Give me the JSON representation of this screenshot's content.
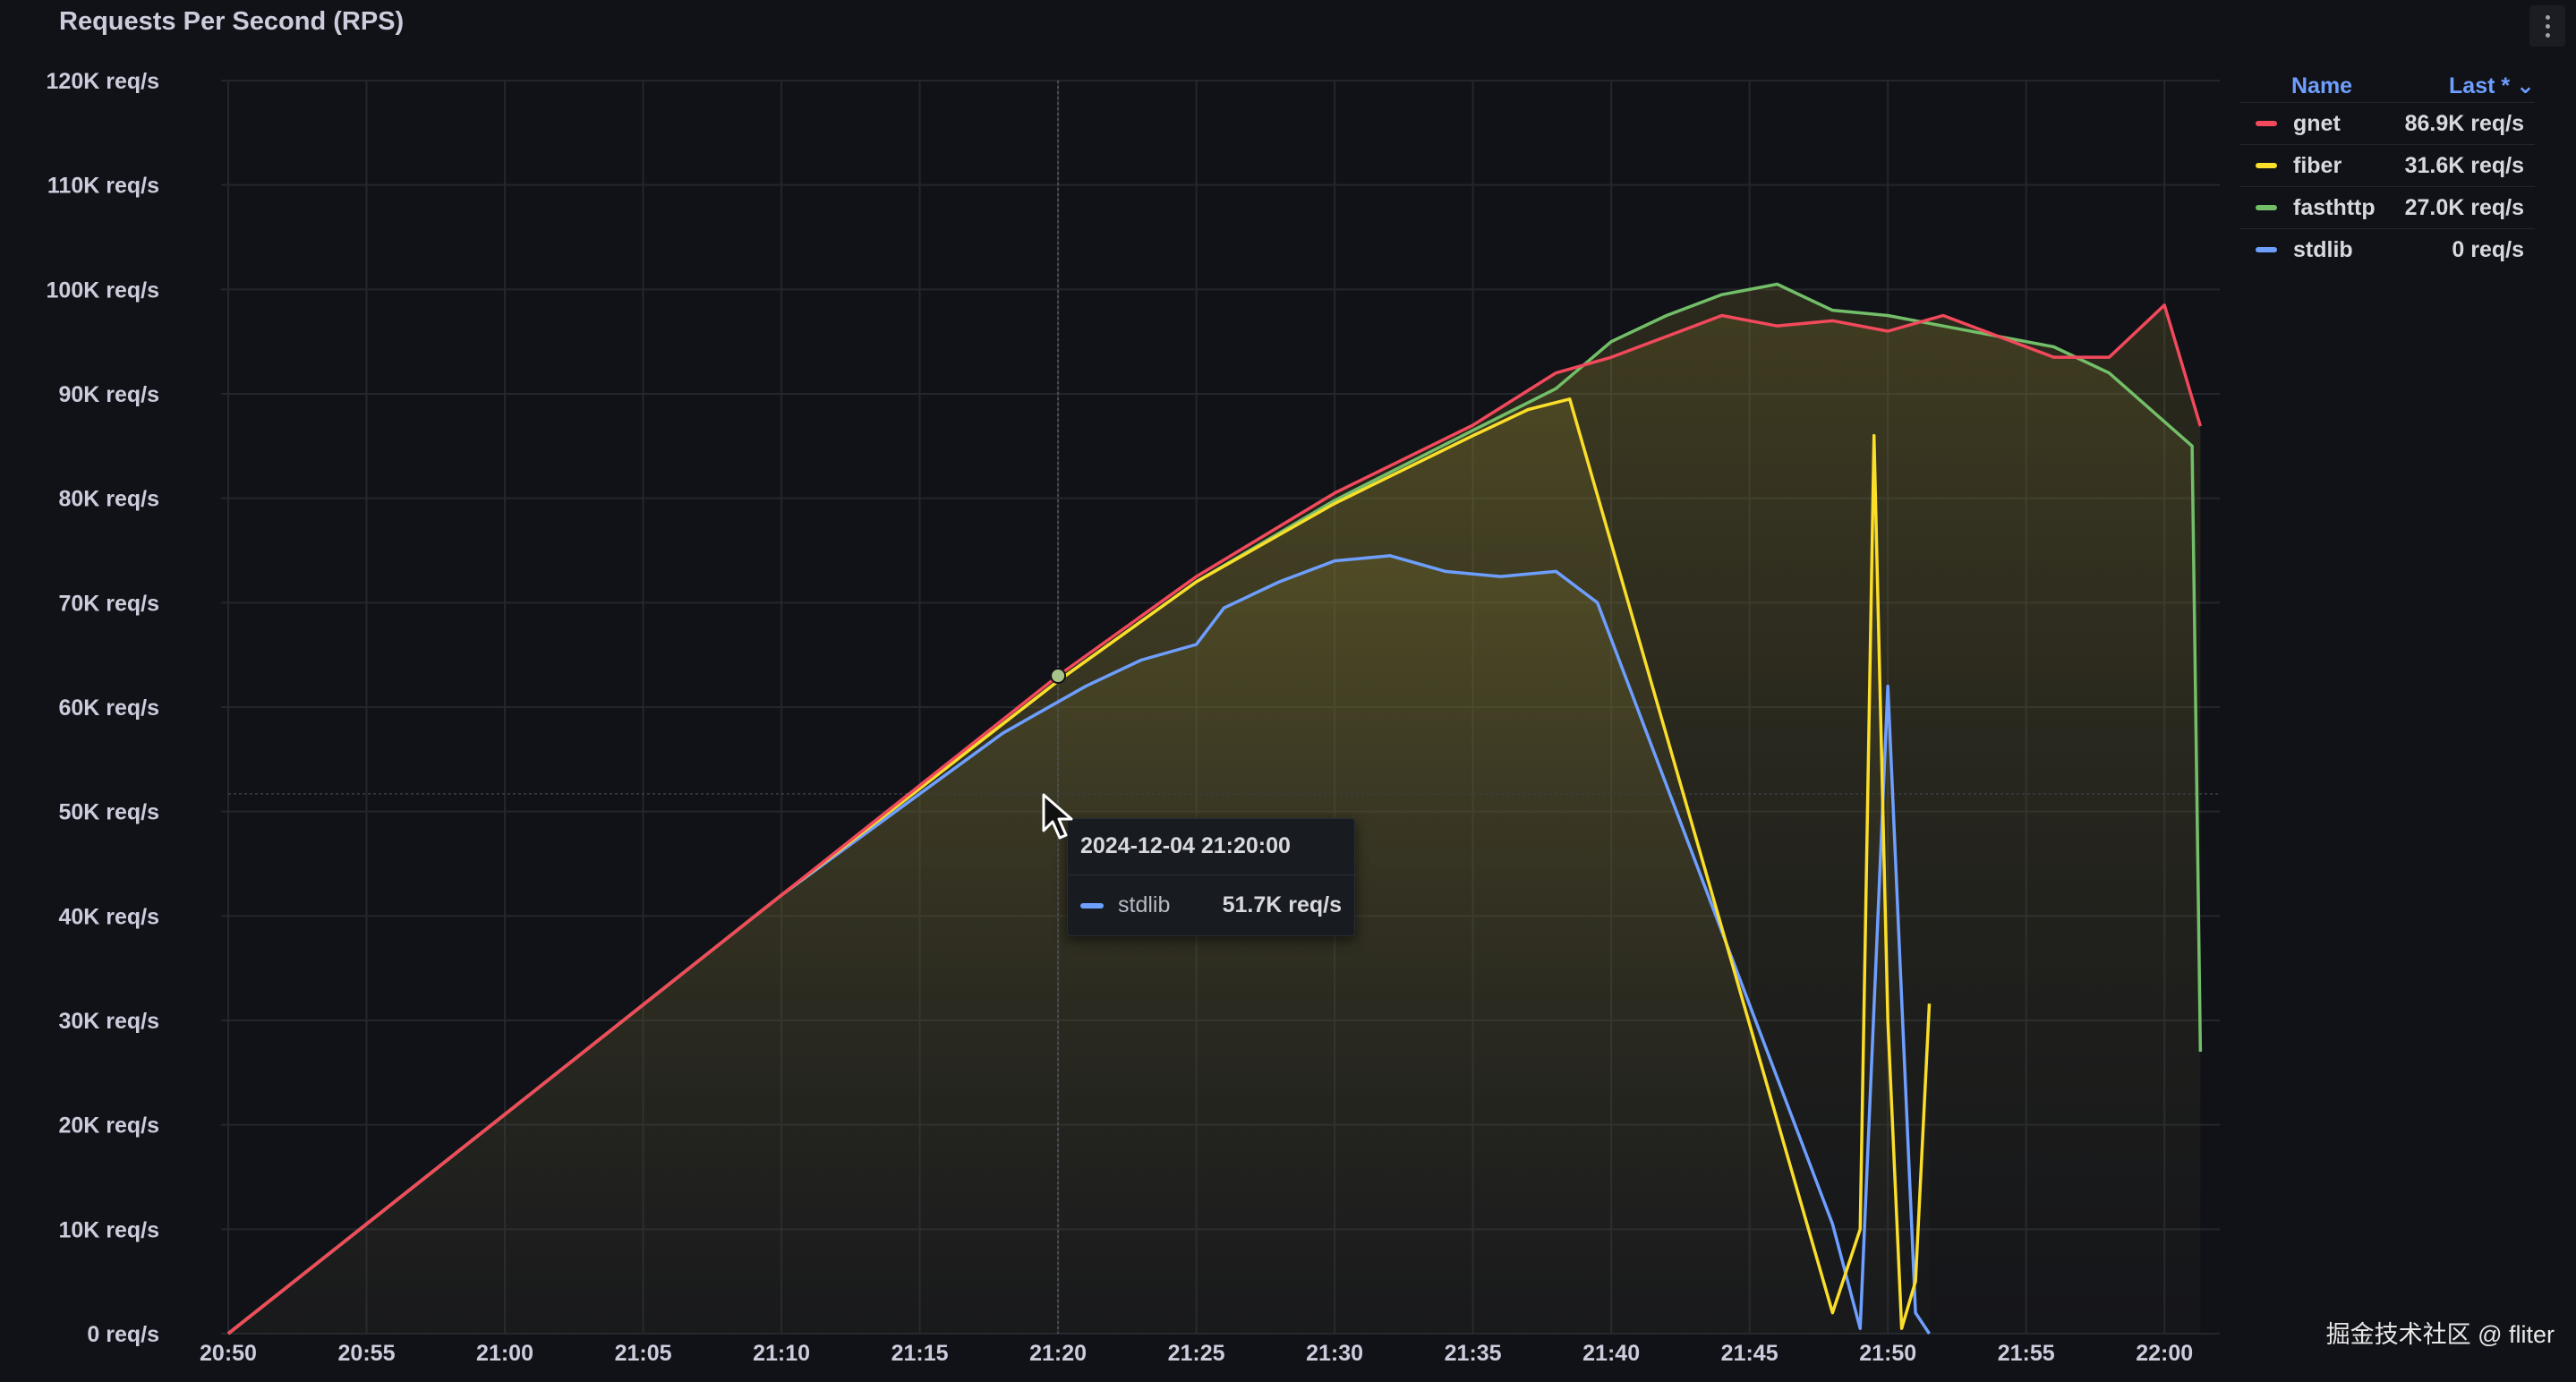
{
  "panel": {
    "title": "Requests Per Second (RPS)"
  },
  "legend": {
    "name_header": "Name",
    "value_header": "Last * ⌄",
    "items": [
      {
        "label": "gnet",
        "value": "86.9K req/s",
        "color": "#f2495c"
      },
      {
        "label": "fiber",
        "value": "31.6K req/s",
        "color": "#fade2a"
      },
      {
        "label": "fasthttp",
        "value": "27.0K req/s",
        "color": "#73bf69"
      },
      {
        "label": "stdlib",
        "value": "0 req/s",
        "color": "#6e9fff"
      }
    ]
  },
  "tooltip": {
    "time": "2024-12-04 21:20:00",
    "series": "stdlib",
    "value": "51.7K req/s",
    "color": "#6e9fff"
  },
  "watermark": "掘金技术社区 @ fliter",
  "chart_data": {
    "type": "line",
    "title": "Requests Per Second (RPS)",
    "ylim": [
      0,
      120000
    ],
    "y_ticks": [
      "0 req/s",
      "10K req/s",
      "20K req/s",
      "30K req/s",
      "40K req/s",
      "50K req/s",
      "60K req/s",
      "70K req/s",
      "80K req/s",
      "90K req/s",
      "100K req/s",
      "110K req/s",
      "120K req/s"
    ],
    "x_ticks": [
      "20:50",
      "20:55",
      "21:00",
      "21:05",
      "21:10",
      "21:15",
      "21:20",
      "21:25",
      "21:30",
      "21:35",
      "21:40",
      "21:45",
      "21:50",
      "21:55",
      "22:00"
    ],
    "x_unit": "minutes after 20:50",
    "xlim": [
      0,
      72
    ],
    "grid": true,
    "legend_position": "right",
    "series": [
      {
        "name": "gnet",
        "color": "#f2495c",
        "points": [
          [
            0,
            0
          ],
          [
            5,
            10500
          ],
          [
            10,
            21000
          ],
          [
            15,
            31500
          ],
          [
            20,
            42000
          ],
          [
            25,
            52500
          ],
          [
            30,
            63000
          ],
          [
            35,
            72500
          ],
          [
            40,
            80500
          ],
          [
            45,
            87000
          ],
          [
            48,
            92000
          ],
          [
            50,
            93500
          ],
          [
            52,
            95500
          ],
          [
            54,
            97500
          ],
          [
            56,
            96500
          ],
          [
            58,
            97000
          ],
          [
            60,
            96000
          ],
          [
            62,
            97500
          ],
          [
            64,
            95500
          ],
          [
            66,
            93500
          ],
          [
            68,
            93500
          ],
          [
            70,
            98500
          ],
          [
            71.3,
            86900
          ]
        ]
      },
      {
        "name": "fiber",
        "color": "#fade2a",
        "points": [
          [
            0,
            0
          ],
          [
            5,
            10500
          ],
          [
            10,
            21000
          ],
          [
            15,
            31500
          ],
          [
            20,
            42000
          ],
          [
            25,
            52200
          ],
          [
            30,
            62500
          ],
          [
            35,
            72000
          ],
          [
            40,
            79500
          ],
          [
            45,
            86000
          ],
          [
            47,
            88500
          ],
          [
            48.5,
            89500
          ],
          [
            58,
            2000
          ],
          [
            59,
            10000
          ],
          [
            59.5,
            86000
          ],
          [
            60,
            30000
          ],
          [
            60.5,
            500
          ],
          [
            61,
            5000
          ],
          [
            61.5,
            31600
          ]
        ]
      },
      {
        "name": "fasthttp",
        "color": "#73bf69",
        "points": [
          [
            0,
            0
          ],
          [
            5,
            10500
          ],
          [
            10,
            21000
          ],
          [
            15,
            31500
          ],
          [
            20,
            42000
          ],
          [
            25,
            52200
          ],
          [
            30,
            62500
          ],
          [
            35,
            72000
          ],
          [
            40,
            79800
          ],
          [
            45,
            86500
          ],
          [
            48,
            90500
          ],
          [
            50,
            95000
          ],
          [
            52,
            97500
          ],
          [
            54,
            99500
          ],
          [
            56,
            100500
          ],
          [
            58,
            98000
          ],
          [
            60,
            97500
          ],
          [
            62,
            96500
          ],
          [
            64,
            95500
          ],
          [
            66,
            94500
          ],
          [
            68,
            92000
          ],
          [
            71,
            85000
          ],
          [
            71.3,
            27000
          ]
        ]
      },
      {
        "name": "stdlib",
        "color": "#6e9fff",
        "points": [
          [
            0,
            0
          ],
          [
            5,
            10500
          ],
          [
            10,
            21000
          ],
          [
            15,
            31500
          ],
          [
            20,
            42000
          ],
          [
            25,
            51700
          ],
          [
            28,
            57500
          ],
          [
            31,
            62000
          ],
          [
            33,
            64500
          ],
          [
            35,
            66000
          ],
          [
            36,
            69500
          ],
          [
            38,
            72000
          ],
          [
            40,
            74000
          ],
          [
            42,
            74500
          ],
          [
            44,
            73000
          ],
          [
            46,
            72500
          ],
          [
            48,
            73000
          ],
          [
            49.5,
            70000
          ],
          [
            58,
            10500
          ],
          [
            59,
            500
          ],
          [
            60,
            62000
          ],
          [
            61,
            2000
          ],
          [
            61.5,
            0
          ]
        ]
      }
    ]
  }
}
